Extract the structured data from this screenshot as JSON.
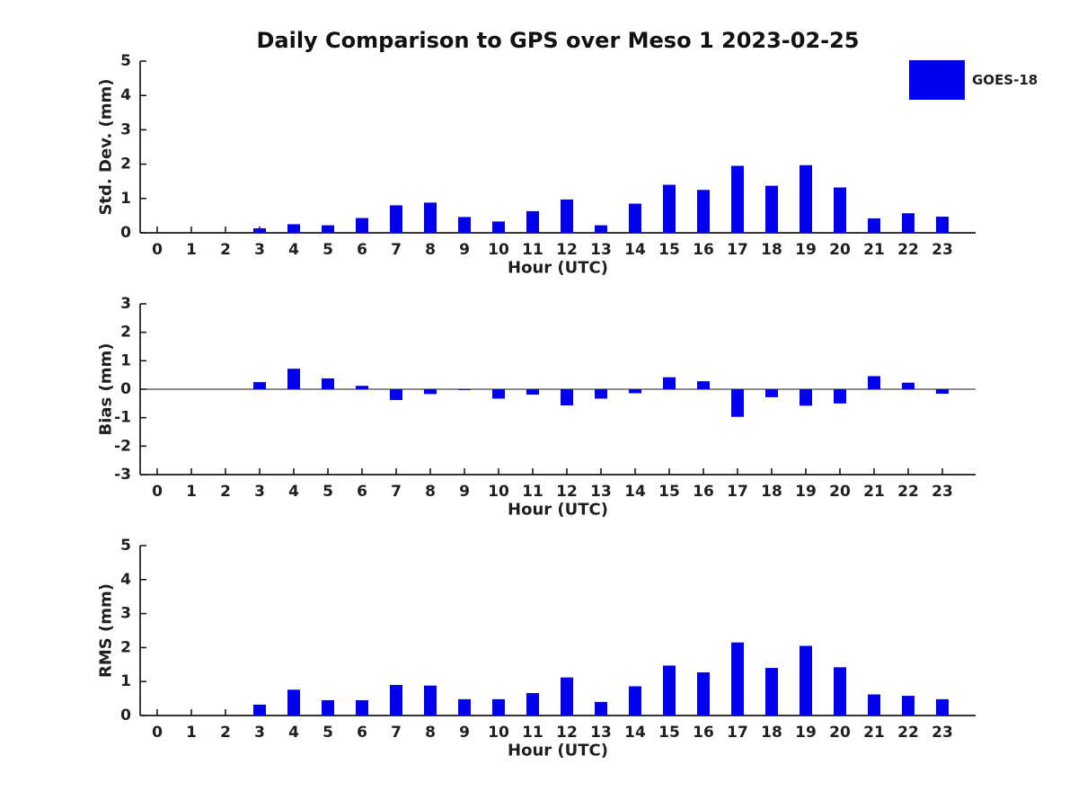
{
  "figure_title": "Daily Comparison to GPS over Meso 1 2023-02-25",
  "legend": {
    "label": "GOES-18",
    "color": "#0000EE",
    "position": "upper right"
  },
  "bar_color": "#0000EE",
  "chart_data": [
    {
      "type": "bar",
      "panel": "std_dev",
      "title": "",
      "xlabel": "Hour (UTC)",
      "ylabel": "Std. Dev. (mm)",
      "ylim": [
        0,
        5
      ],
      "yticks": [
        0,
        1,
        2,
        3,
        4,
        5
      ],
      "grid": false,
      "legend_position": "upper right",
      "categories": [
        "0",
        "1",
        "2",
        "3",
        "4",
        "5",
        "6",
        "7",
        "8",
        "9",
        "10",
        "11",
        "12",
        "13",
        "14",
        "15",
        "16",
        "17",
        "18",
        "19",
        "20",
        "21",
        "22",
        "23"
      ],
      "series": [
        {
          "name": "GOES-18",
          "values": [
            0,
            0,
            0,
            0.13,
            0.25,
            0.22,
            0.43,
            0.8,
            0.88,
            0.46,
            0.33,
            0.63,
            0.97,
            0.22,
            0.85,
            1.4,
            1.25,
            1.95,
            1.37,
            1.97,
            1.32,
            0.42,
            0.57,
            0.47
          ]
        }
      ]
    },
    {
      "type": "bar",
      "panel": "bias",
      "title": "",
      "xlabel": "Hour (UTC)",
      "ylabel": "Bias (mm)",
      "ylim": [
        -3,
        3
      ],
      "yticks": [
        -3,
        -2,
        -1,
        0,
        1,
        2,
        3
      ],
      "zero_line": true,
      "grid": false,
      "categories": [
        "0",
        "1",
        "2",
        "3",
        "4",
        "5",
        "6",
        "7",
        "8",
        "9",
        "10",
        "11",
        "12",
        "13",
        "14",
        "15",
        "16",
        "17",
        "18",
        "19",
        "20",
        "21",
        "22",
        "23"
      ],
      "series": [
        {
          "name": "GOES-18",
          "values": [
            0,
            0,
            0,
            0.25,
            0.72,
            0.38,
            0.12,
            -0.38,
            -0.17,
            -0.03,
            -0.33,
            -0.19,
            -0.57,
            -0.33,
            -0.14,
            0.42,
            0.28,
            -0.97,
            -0.28,
            -0.58,
            -0.5,
            0.46,
            0.23,
            -0.16
          ]
        }
      ]
    },
    {
      "type": "bar",
      "panel": "rms",
      "title": "",
      "xlabel": "Hour (UTC)",
      "ylabel": "RMS (mm)",
      "ylim": [
        0,
        5
      ],
      "yticks": [
        0,
        1,
        2,
        3,
        4,
        5
      ],
      "grid": false,
      "categories": [
        "0",
        "1",
        "2",
        "3",
        "4",
        "5",
        "6",
        "7",
        "8",
        "9",
        "10",
        "11",
        "12",
        "13",
        "14",
        "15",
        "16",
        "17",
        "18",
        "19",
        "20",
        "21",
        "22",
        "23"
      ],
      "series": [
        {
          "name": "GOES-18",
          "values": [
            0,
            0,
            0,
            0.32,
            0.76,
            0.45,
            0.45,
            0.9,
            0.88,
            0.48,
            0.48,
            0.66,
            1.12,
            0.4,
            0.86,
            1.47,
            1.27,
            2.15,
            1.4,
            2.05,
            1.42,
            0.62,
            0.58,
            0.48
          ]
        }
      ]
    }
  ]
}
